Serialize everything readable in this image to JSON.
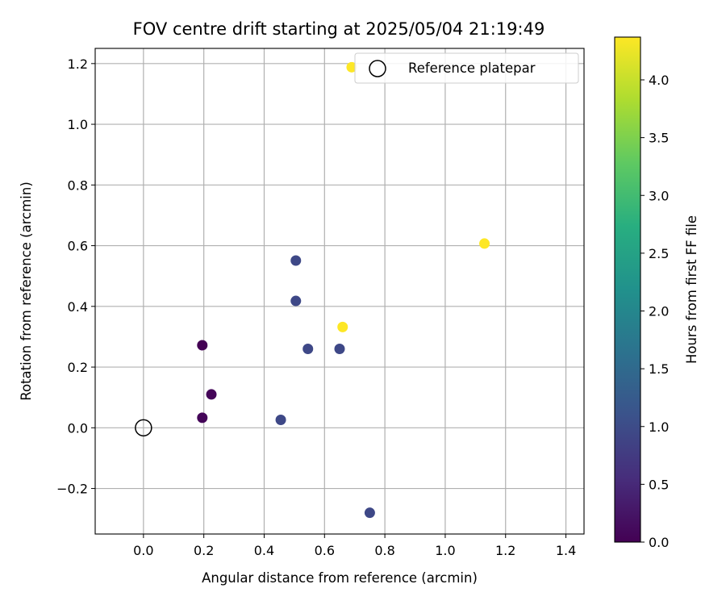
{
  "chart_data": {
    "type": "scatter",
    "title": "FOV centre drift starting at 2025/05/04 21:19:49",
    "xlabel": "Angular distance from reference (arcmin)",
    "ylabel": "Rotation from reference (arcmin)",
    "xlim": [
      -0.16,
      1.46
    ],
    "ylim": [
      -0.35,
      1.25
    ],
    "grid": true,
    "xticks": [
      0.0,
      0.2,
      0.4,
      0.6,
      0.8,
      1.0,
      1.2,
      1.4
    ],
    "xtick_labels": [
      "0.0",
      "0.2",
      "0.4",
      "0.6",
      "0.8",
      "1.0",
      "1.2",
      "1.4"
    ],
    "yticks": [
      -0.2,
      0.0,
      0.2,
      0.4,
      0.6,
      0.8,
      1.0,
      1.2
    ],
    "ytick_labels": [
      "−0.2",
      "0.0",
      "0.2",
      "0.4",
      "0.6",
      "0.8",
      "1.0",
      "1.2"
    ],
    "colormap": "viridis",
    "colorbar": {
      "label": "Hours from first FF file",
      "range": [
        0.0,
        4.37
      ],
      "ticks": [
        0.0,
        0.5,
        1.0,
        1.5,
        2.0,
        2.5,
        3.0,
        3.5,
        4.0
      ],
      "tick_labels": [
        "0.0",
        "0.5",
        "1.0",
        "1.5",
        "2.0",
        "2.5",
        "3.0",
        "3.5",
        "4.0"
      ]
    },
    "legend": {
      "placement": "top-right",
      "entries": [
        "Reference platepar"
      ]
    },
    "reference_point": {
      "x": 0.0,
      "y": 0.0
    },
    "points": [
      {
        "x": 0.195,
        "y": 0.272,
        "hours": 0.0
      },
      {
        "x": 0.225,
        "y": 0.11,
        "hours": 0.05
      },
      {
        "x": 0.195,
        "y": 0.033,
        "hours": 0.05
      },
      {
        "x": 0.505,
        "y": 0.551,
        "hours": 0.95
      },
      {
        "x": 0.505,
        "y": 0.418,
        "hours": 0.95
      },
      {
        "x": 0.545,
        "y": 0.26,
        "hours": 0.95
      },
      {
        "x": 0.65,
        "y": 0.26,
        "hours": 0.95
      },
      {
        "x": 0.455,
        "y": 0.026,
        "hours": 0.95
      },
      {
        "x": 0.75,
        "y": -0.28,
        "hours": 0.95
      },
      {
        "x": 0.66,
        "y": 0.332,
        "hours": 4.37
      },
      {
        "x": 1.13,
        "y": 0.607,
        "hours": 4.37
      },
      {
        "x": 0.69,
        "y": 1.188,
        "hours": 4.37
      }
    ]
  }
}
